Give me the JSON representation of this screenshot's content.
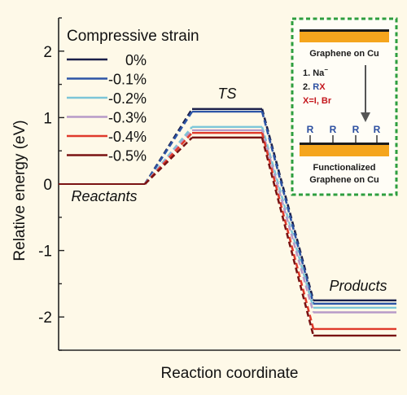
{
  "chart_data": {
    "type": "line",
    "xlabel": "Reaction coordinate",
    "ylabel": "Relative energy (eV)",
    "ylim": [
      -2.5,
      2.5
    ],
    "yticks": [
      -2,
      -1,
      0,
      1,
      2
    ],
    "grid": false,
    "legend": {
      "title": "Compressive strain",
      "placement": "top-left"
    },
    "stages": [
      "Reactants",
      "TS",
      "Products"
    ],
    "series": [
      {
        "name": "0%",
        "color": "#1a1f4a",
        "values": [
          0,
          1.13,
          -1.75
        ]
      },
      {
        "name": "-0.1%",
        "color": "#2d55a6",
        "values": [
          0,
          1.09,
          -1.8
        ]
      },
      {
        "name": "-0.2%",
        "color": "#7cc6d8",
        "values": [
          0,
          0.86,
          -1.86
        ]
      },
      {
        "name": "-0.3%",
        "color": "#b79bc8",
        "values": [
          0,
          0.81,
          -1.93
        ]
      },
      {
        "name": "-0.4%",
        "color": "#e03a2b",
        "values": [
          0,
          0.77,
          -2.18
        ]
      },
      {
        "name": "-0.5%",
        "color": "#7a1313",
        "values": [
          0,
          0.7,
          -2.28
        ]
      }
    ]
  },
  "inset": {
    "top_label": "Graphene on Cu",
    "step1_prefix": "1. Na",
    "step1_sup": "−",
    "step2_prefix": "2. R",
    "step2_x": "X",
    "condition": "X=I, Br",
    "group_label": "R",
    "bottom_label_1": "Functionalized",
    "bottom_label_2": "Graphene on Cu",
    "colors": {
      "border": "#2e9e3f",
      "graphene": "#f5a51d",
      "blue": "#2b4ea0",
      "red": "#c4161c"
    }
  }
}
